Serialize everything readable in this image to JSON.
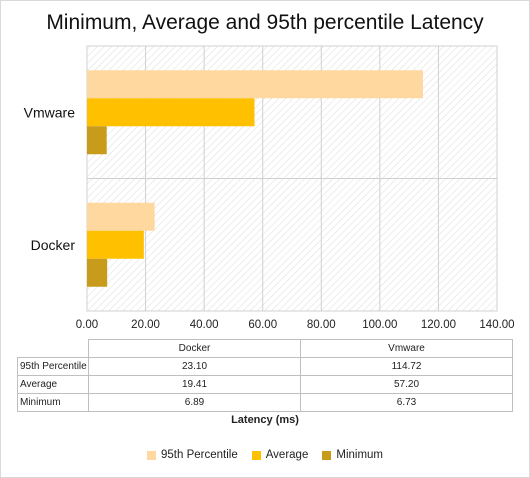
{
  "chart_data": {
    "type": "bar",
    "orientation": "horizontal",
    "title": "Minimum, Average and 95th percentile Latency",
    "xlabel": "Latency (ms)",
    "ylabel": "",
    "categories": [
      "Docker",
      "Vmware"
    ],
    "xlim": [
      0,
      140
    ],
    "x_ticks": [
      "0.00",
      "20.00",
      "40.00",
      "60.00",
      "80.00",
      "100.00",
      "120.00",
      "140.00"
    ],
    "grid": true,
    "legend_position": "bottom",
    "series": [
      {
        "name": "95th Percentile",
        "values": [
          23.1,
          114.72
        ],
        "labels": [
          "23.10",
          "114.72"
        ],
        "color": "#FFD8A0"
      },
      {
        "name": "Average",
        "values": [
          19.41,
          57.2
        ],
        "labels": [
          "19.41",
          "57.20"
        ],
        "color": "#FFC000"
      },
      {
        "name": "Minimum",
        "values": [
          6.89,
          6.73
        ],
        "labels": [
          "6.89",
          "6.73"
        ],
        "color": "#C89B1A"
      }
    ],
    "data_table": true
  }
}
